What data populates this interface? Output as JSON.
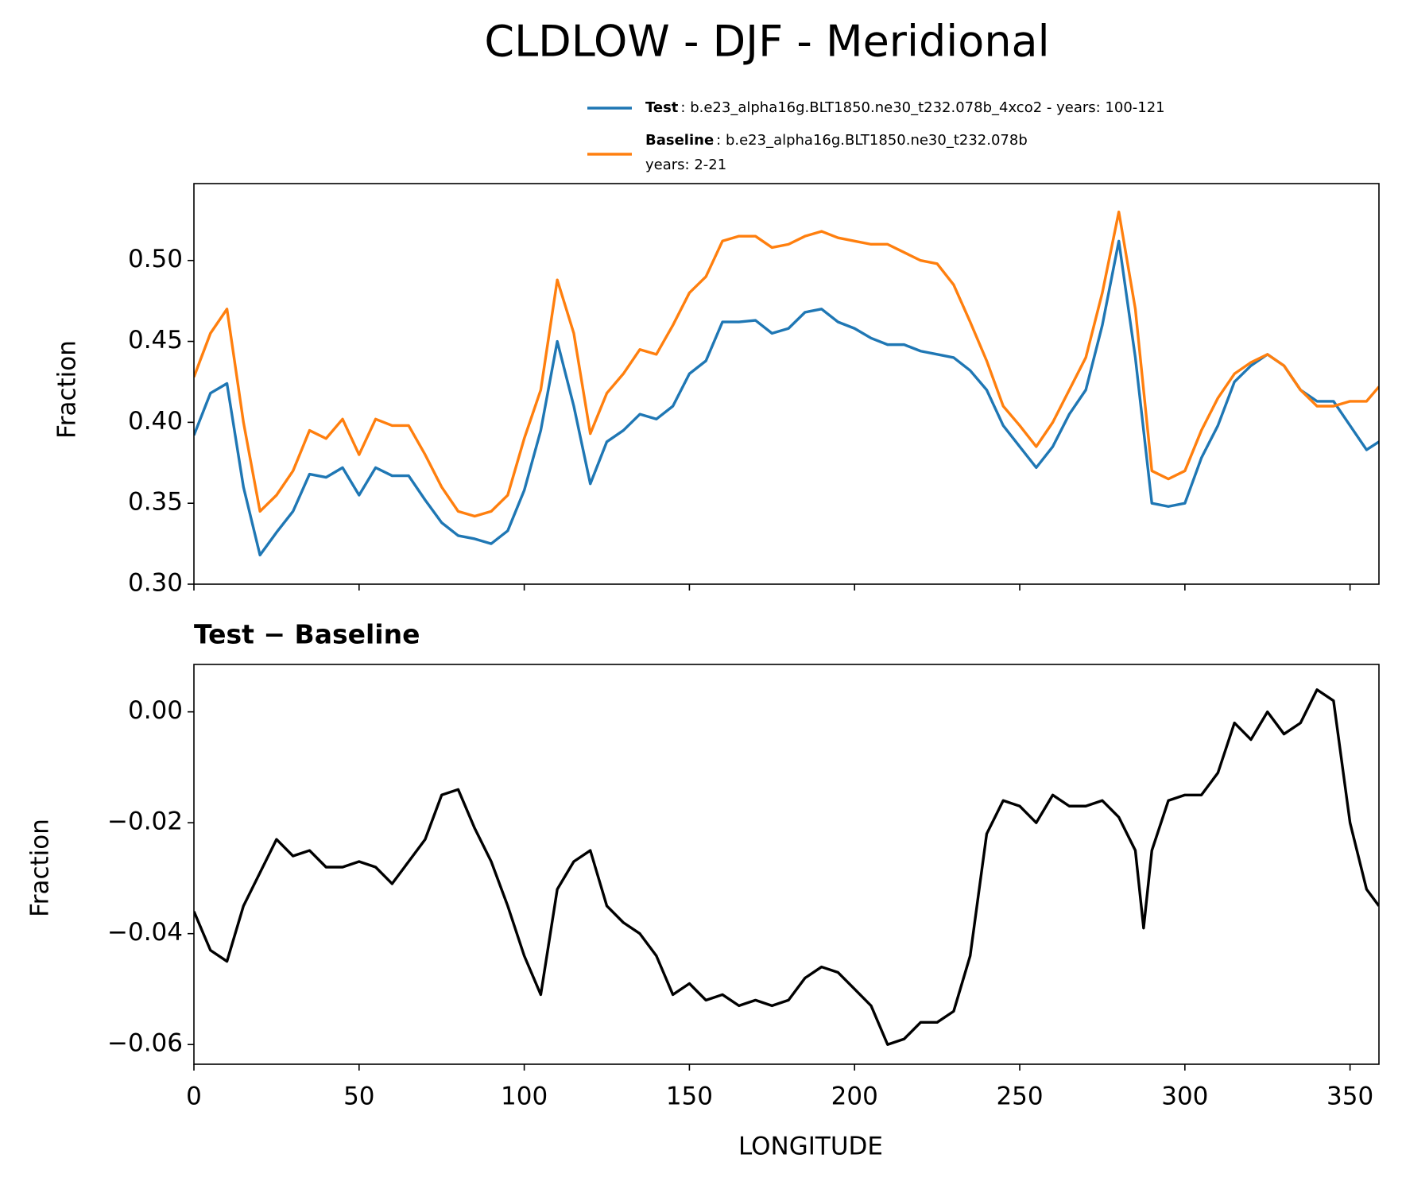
{
  "chart_data": [
    {
      "type": "line",
      "title": "CLDLOW - DJF - Meridional",
      "ylabel": "Fraction",
      "xlim": [
        0,
        358.75
      ],
      "xticks": [
        0,
        50,
        100,
        150,
        200,
        250,
        300,
        350
      ],
      "ylim": [
        0.3,
        0.5475
      ],
      "yticks": [
        {
          "value": 0.3,
          "label": "0.30"
        },
        {
          "value": 0.35,
          "label": "0.35"
        },
        {
          "value": 0.4,
          "label": "0.40"
        },
        {
          "value": 0.45,
          "label": "0.45"
        },
        {
          "value": 0.5,
          "label": "0.50"
        }
      ],
      "x": [
        0,
        5,
        10,
        15,
        20,
        25,
        30,
        35,
        40,
        45,
        50,
        55,
        60,
        65,
        70,
        75,
        80,
        85,
        90,
        95,
        100,
        105,
        110,
        115,
        120,
        125,
        130,
        135,
        140,
        145,
        150,
        155,
        160,
        165,
        170,
        175,
        180,
        185,
        190,
        195,
        200,
        205,
        210,
        215,
        220,
        225,
        230,
        235,
        240,
        245,
        250,
        255,
        260,
        265,
        270,
        275,
        280,
        285,
        290,
        295,
        300,
        305,
        310,
        315,
        320,
        325,
        330,
        335,
        340,
        345,
        350,
        355,
        358.75
      ],
      "series": [
        {
          "name": "Test",
          "label_detail": [
            ": b.e23_alpha16g.BLT1850.ne30_t232.078b_4xco2 - years: 100-121"
          ],
          "color": "#1f77b4",
          "values": [
            0.392,
            0.418,
            0.424,
            0.36,
            0.318,
            0.332,
            0.345,
            0.368,
            0.366,
            0.372,
            0.355,
            0.372,
            0.367,
            0.367,
            0.352,
            0.338,
            0.33,
            0.328,
            0.325,
            0.333,
            0.358,
            0.395,
            0.45,
            0.41,
            0.362,
            0.388,
            0.395,
            0.405,
            0.402,
            0.41,
            0.43,
            0.438,
            0.462,
            0.462,
            0.463,
            0.455,
            0.458,
            0.468,
            0.47,
            0.462,
            0.458,
            0.452,
            0.448,
            0.448,
            0.444,
            0.442,
            0.44,
            0.432,
            0.42,
            0.398,
            0.385,
            0.372,
            0.385,
            0.405,
            0.42,
            0.46,
            0.512,
            0.44,
            0.35,
            0.348,
            0.35,
            0.378,
            0.398,
            0.425,
            0.435,
            0.442,
            0.435,
            0.42,
            0.413,
            0.413,
            0.398,
            0.383,
            0.388
          ]
        },
        {
          "name": "Baseline",
          "label_detail": [
            ": b.e23_alpha16g.BLT1850.ne30_t232.078b",
            "years: 2-21"
          ],
          "color": "#ff7f0e",
          "values": [
            0.428,
            0.455,
            0.47,
            0.4,
            0.345,
            0.355,
            0.37,
            0.395,
            0.39,
            0.402,
            0.38,
            0.402,
            0.398,
            0.398,
            0.38,
            0.36,
            0.345,
            0.342,
            0.345,
            0.355,
            0.39,
            0.42,
            0.488,
            0.455,
            0.393,
            0.418,
            0.43,
            0.445,
            0.442,
            0.46,
            0.48,
            0.49,
            0.512,
            0.515,
            0.515,
            0.508,
            0.51,
            0.515,
            0.518,
            0.514,
            0.512,
            0.51,
            0.51,
            0.505,
            0.5,
            0.498,
            0.485,
            0.462,
            0.438,
            0.41,
            0.398,
            0.385,
            0.4,
            0.42,
            0.44,
            0.48,
            0.53,
            0.47,
            0.37,
            0.365,
            0.37,
            0.395,
            0.415,
            0.43,
            0.437,
            0.442,
            0.435,
            0.42,
            0.41,
            0.41,
            0.413,
            0.413,
            0.422
          ]
        }
      ]
    },
    {
      "type": "line",
      "subtitle": "Test − Baseline",
      "ylabel": "Fraction",
      "xlabel": "LONGITUDE",
      "xlim": [
        0,
        358.75
      ],
      "xticks": [
        0,
        50,
        100,
        150,
        200,
        250,
        300,
        350
      ],
      "ylim": [
        -0.06355,
        0.00855
      ],
      "yticks": [
        {
          "value": -0.06,
          "label": "−0.06"
        },
        {
          "value": -0.04,
          "label": "−0.04"
        },
        {
          "value": -0.02,
          "label": "−0.02"
        },
        {
          "value": 0,
          "label": "0.00"
        }
      ],
      "x": [
        0,
        5,
        10,
        15,
        20,
        25,
        30,
        35,
        40,
        45,
        50,
        55,
        60,
        65,
        70,
        75,
        80,
        85,
        90,
        95,
        100,
        105,
        110,
        115,
        120,
        125,
        130,
        135,
        140,
        145,
        150,
        155,
        160,
        165,
        170,
        175,
        180,
        185,
        190,
        195,
        200,
        205,
        210,
        215,
        220,
        225,
        230,
        235,
        240,
        245,
        250,
        255,
        260,
        265,
        270,
        275,
        280,
        285,
        287.5,
        290,
        295,
        300,
        305,
        310,
        315,
        320,
        325,
        330,
        335,
        340,
        345,
        350,
        355,
        358.75
      ],
      "series": [
        {
          "name": "Test − Baseline",
          "color": "#000000",
          "values": [
            -0.036,
            -0.043,
            -0.045,
            -0.035,
            -0.029,
            -0.023,
            -0.026,
            -0.025,
            -0.028,
            -0.028,
            -0.027,
            -0.028,
            -0.031,
            -0.027,
            -0.023,
            -0.015,
            -0.014,
            -0.021,
            -0.027,
            -0.035,
            -0.044,
            -0.051,
            -0.032,
            -0.027,
            -0.025,
            -0.035,
            -0.038,
            -0.04,
            -0.044,
            -0.051,
            -0.049,
            -0.052,
            -0.051,
            -0.053,
            -0.052,
            -0.053,
            -0.052,
            -0.048,
            -0.046,
            -0.047,
            -0.05,
            -0.053,
            -0.06,
            -0.059,
            -0.056,
            -0.056,
            -0.054,
            -0.044,
            -0.022,
            -0.016,
            -0.017,
            -0.02,
            -0.015,
            -0.017,
            -0.017,
            -0.016,
            -0.019,
            -0.025,
            -0.039,
            -0.025,
            -0.016,
            -0.015,
            -0.015,
            -0.011,
            -0.002,
            -0.005,
            0.0,
            -0.004,
            -0.002,
            0.004,
            0.002,
            -0.02,
            -0.032,
            -0.035
          ]
        }
      ]
    }
  ]
}
